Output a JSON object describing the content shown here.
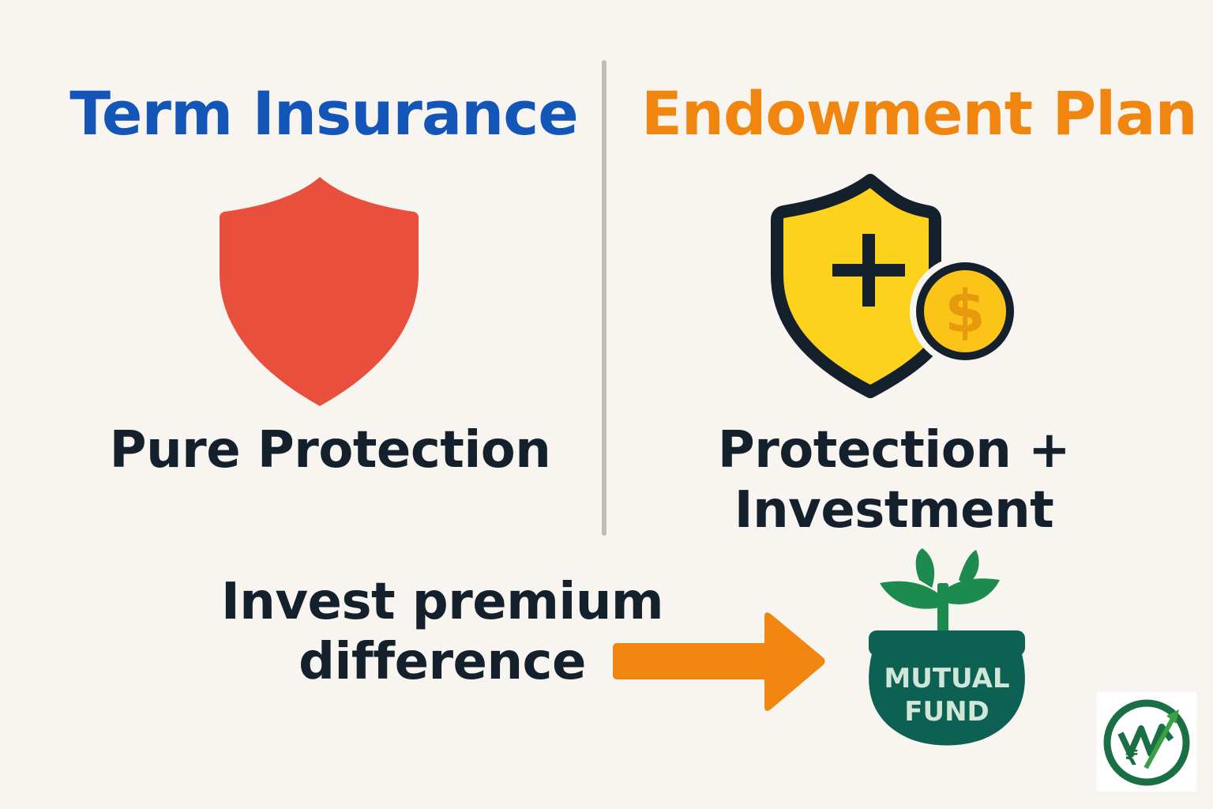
{
  "left_panel": {
    "title": "Term Insurance",
    "caption": "Pure Protection",
    "icon": "shield-icon",
    "colors": {
      "title": "#1456b8",
      "shield": "#e84f3d"
    }
  },
  "right_panel": {
    "title": "Endowment Plan",
    "caption_line1": "Protection +",
    "caption_line2": "Investment",
    "icon": "shield-plus-coin-icon",
    "coin_symbol": "$",
    "colors": {
      "title": "#f0860f",
      "shield": "#fcd21c",
      "outline": "#14202b",
      "coin": "#fcc419"
    }
  },
  "bottom": {
    "caption_line1": "Invest premium",
    "caption_line2": "difference",
    "arrow_icon": "arrow-right-icon",
    "pot_icon": "money-pot-plant-icon",
    "pot_line1": "MUTUAL",
    "pot_line2": "FUND",
    "colors": {
      "arrow": "#f0860f",
      "pot": "#0d6152",
      "leaves": "#1d8a4e"
    }
  },
  "logo": {
    "icon": "brand-logo-icon",
    "symbol": "₹"
  }
}
